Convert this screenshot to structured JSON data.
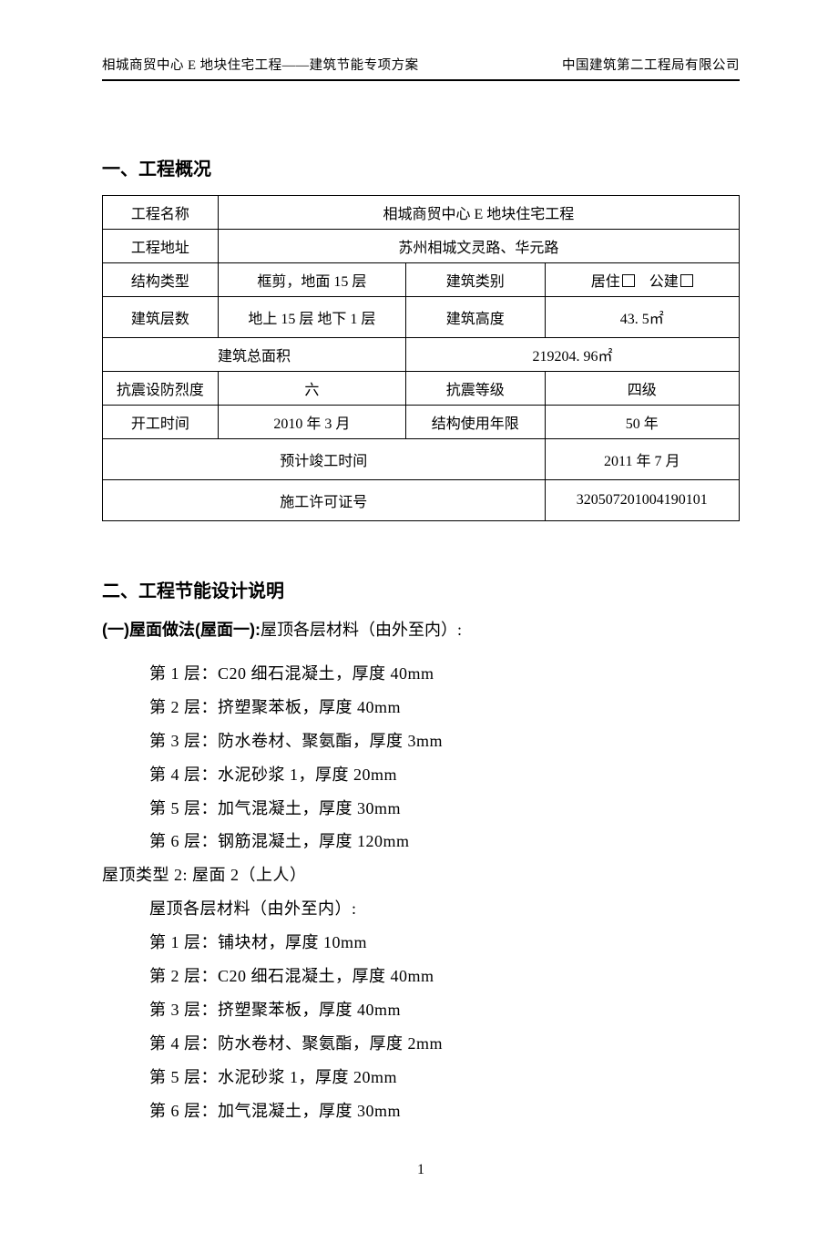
{
  "header": {
    "left": "相城商贸中心 E 地块住宅工程——建筑节能专项方案",
    "right": "中国建筑第二工程局有限公司"
  },
  "section1": {
    "title": "一、工程概况",
    "rows": {
      "project_name_label": "工程名称",
      "project_name": "相城商贸中心 E 地块住宅工程",
      "address_label": "工程地址",
      "address": "苏州相城文灵路、华元路",
      "struct_type_label": "结构类型",
      "struct_type": "框剪，地面 15 层",
      "bldg_class_label": "建筑类别",
      "bldg_class_residential": "居住",
      "bldg_class_public": "公建",
      "floors_label": "建筑层数",
      "floors": "地上 15 层  地下 1 层",
      "height_label": "建筑高度",
      "height": "43. 5㎡",
      "total_area_label": "建筑总面积",
      "total_area": "219204. 96㎡",
      "seismic_intensity_label": "抗震设防烈度",
      "seismic_intensity": "六",
      "seismic_grade_label": "抗震等级",
      "seismic_grade": "四级",
      "start_label": "开工时间",
      "start": "2010 年 3 月",
      "lifespan_label": "结构使用年限",
      "lifespan": "50 年",
      "completion_label": "预计竣工时间",
      "completion": "2011 年 7 月",
      "permit_label": "施工许可证号",
      "permit": "320507201004190101"
    }
  },
  "section2": {
    "title": "二、工程节能设计说明",
    "sub1_bold": "(一)屋面做法(屋面一):",
    "sub1_plain": " 屋顶各层材料（由外至内）:",
    "roof1": [
      "第 1 层：C20 细石混凝土，厚度 40mm",
      "第 2 层：挤塑聚苯板，厚度 40mm",
      "第 3 层：防水卷材、聚氨酯，厚度 3mm",
      "第 4 层：水泥砂浆 1，厚度 20mm",
      "第 5 层：加气混凝土，厚度 30mm",
      "第 6 层：钢筋混凝土，厚度 120mm"
    ],
    "roof2_header": "屋顶类型 2: 屋面 2（上人）",
    "roof2_sub": "屋顶各层材料（由外至内）:",
    "roof2": [
      "第 1 层：铺块材，厚度 10mm",
      "第 2 层：C20 细石混凝土，厚度 40mm",
      "第 3 层：挤塑聚苯板，厚度 40mm",
      "第 4 层：防水卷材、聚氨酯，厚度 2mm",
      "第 5 层：水泥砂浆 1，厚度 20mm",
      "第 6 层：加气混凝土，厚度 30mm"
    ]
  },
  "page_number": "1"
}
